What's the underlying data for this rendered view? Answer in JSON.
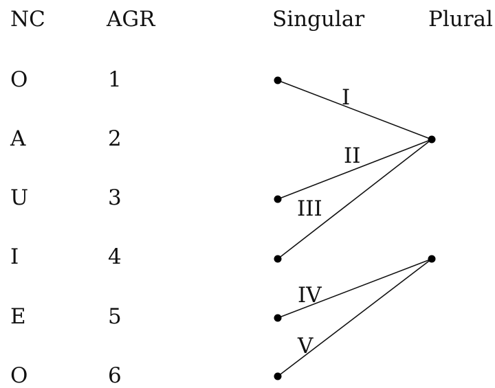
{
  "headers": {
    "nc": "NC",
    "agr": "AGR",
    "singular": "Singular",
    "plural": "Plural"
  },
  "rows": [
    {
      "nc": "O",
      "agr": "1"
    },
    {
      "nc": "A",
      "agr": "2"
    },
    {
      "nc": "U",
      "agr": "3"
    },
    {
      "nc": "I",
      "agr": "4"
    },
    {
      "nc": "E",
      "agr": "5"
    },
    {
      "nc": "O",
      "agr": "6"
    }
  ],
  "singular_nodes": [
    1,
    3,
    4,
    5,
    6
  ],
  "plural_nodes": [
    2,
    4
  ],
  "edges": [
    {
      "label": "I",
      "from_singular": 1,
      "to_plural": 2
    },
    {
      "label": "II",
      "from_singular": 3,
      "to_plural": 2
    },
    {
      "label": "III",
      "from_singular": 4,
      "to_plural": 2
    },
    {
      "label": "IV",
      "from_singular": 5,
      "to_plural": 4
    },
    {
      "label": "V",
      "from_singular": 6,
      "to_plural": 4
    }
  ]
}
